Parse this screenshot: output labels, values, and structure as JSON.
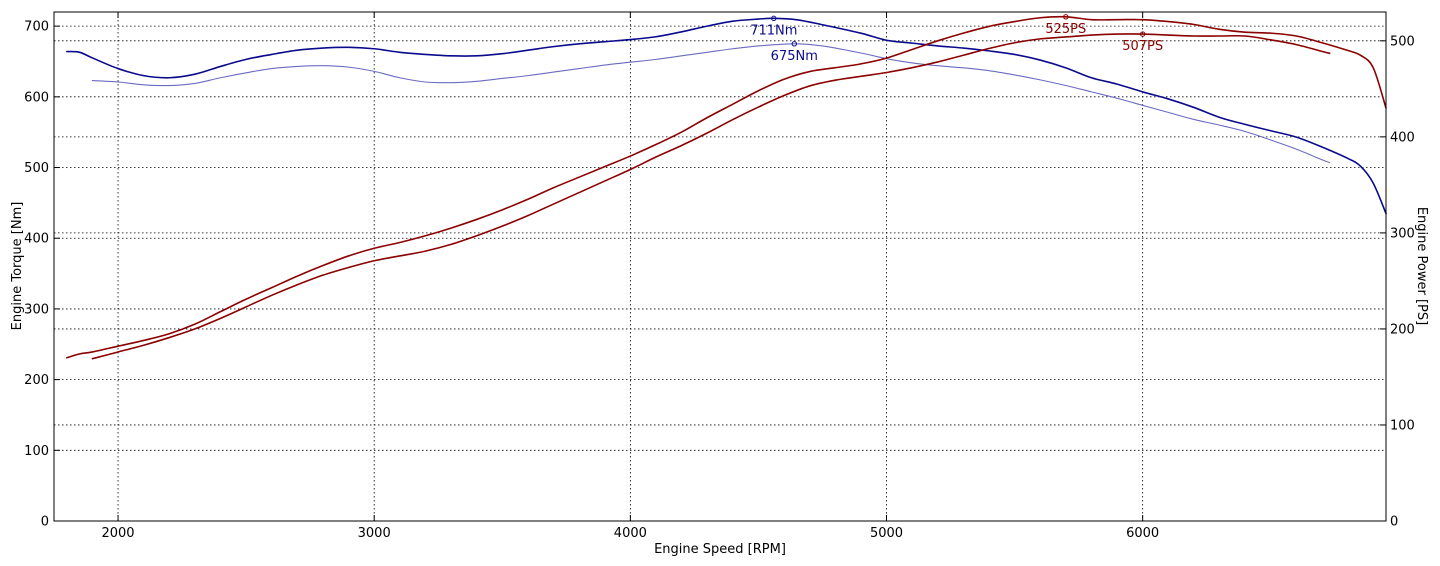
{
  "chart_data": {
    "type": "line",
    "title": "",
    "xlabel": "Engine Speed [RPM]",
    "ylabel": "Engine Torque [Nm]",
    "y2label": "Engine Power [PS]",
    "xlim": [
      1750,
      6950
    ],
    "ylim": [
      0,
      720
    ],
    "y2lim": [
      0,
      530
    ],
    "xticks": [
      2000,
      3000,
      4000,
      5000,
      6000
    ],
    "yticks": [
      0,
      100,
      200,
      300,
      400,
      500,
      600,
      700
    ],
    "y2ticks": [
      0,
      100,
      200,
      300,
      400,
      500
    ],
    "grid": true,
    "colors": {
      "torque": "#0a0a8c",
      "torque_light": "#6b6bc2",
      "power": "#8b0000"
    },
    "series": [
      {
        "key": "torque_a",
        "axis": "left",
        "color": "torque",
        "x": [
          1800,
          1850,
          1900,
          2000,
          2100,
          2200,
          2300,
          2400,
          2500,
          2600,
          2700,
          2800,
          2900,
          3000,
          3100,
          3200,
          3300,
          3400,
          3500,
          3600,
          3700,
          3800,
          3900,
          4000,
          4100,
          4200,
          4300,
          4400,
          4500,
          4560,
          4650,
          4750,
          4900,
          5000,
          5100,
          5200,
          5300,
          5400,
          5500,
          5600,
          5700,
          5800,
          5900,
          6000,
          6100,
          6200,
          6300,
          6400,
          6500,
          6600,
          6700,
          6800,
          6850,
          6900,
          6950
        ],
        "y": [
          664,
          663,
          655,
          640,
          630,
          627,
          632,
          643,
          653,
          660,
          666,
          669,
          670,
          668,
          663,
          660,
          658,
          658,
          661,
          666,
          671,
          675,
          678,
          681,
          685,
          692,
          700,
          707,
          710,
          711,
          709,
          702,
          690,
          680,
          676,
          672,
          669,
          665,
          660,
          652,
          641,
          627,
          618,
          607,
          597,
          585,
          571,
          561,
          552,
          543,
          529,
          513,
          502,
          478,
          435
        ]
      },
      {
        "key": "torque_b",
        "axis": "left",
        "color": "torque_light",
        "x": [
          1900,
          2000,
          2100,
          2200,
          2300,
          2400,
          2500,
          2600,
          2700,
          2800,
          2900,
          3000,
          3100,
          3200,
          3300,
          3400,
          3500,
          3600,
          3700,
          3800,
          3900,
          4000,
          4100,
          4200,
          4300,
          4400,
          4500,
          4640,
          4750,
          4900,
          5000,
          5100,
          5200,
          5300,
          5400,
          5500,
          5600,
          5700,
          5800,
          5900,
          6000,
          6100,
          6200,
          6300,
          6400,
          6500,
          6600,
          6700,
          6730
        ],
        "y": [
          623,
          621,
          617,
          616,
          619,
          627,
          634,
          640,
          643,
          644,
          642,
          636,
          627,
          621,
          620,
          622,
          626,
          630,
          635,
          640,
          645,
          649,
          653,
          658,
          663,
          668,
          672,
          675,
          672,
          662,
          654,
          648,
          644,
          641,
          637,
          631,
          624,
          616,
          607,
          598,
          588,
          578,
          568,
          560,
          551,
          539,
          526,
          511,
          507
        ]
      },
      {
        "key": "power_a",
        "axis": "right",
        "color": "power",
        "x": [
          1800,
          1850,
          1900,
          2000,
          2100,
          2200,
          2300,
          2400,
          2500,
          2600,
          2700,
          2800,
          2900,
          3000,
          3100,
          3200,
          3300,
          3400,
          3500,
          3600,
          3700,
          3800,
          3900,
          4000,
          4100,
          4200,
          4300,
          4400,
          4500,
          4600,
          4700,
          4800,
          4900,
          5000,
          5100,
          5200,
          5300,
          5400,
          5500,
          5600,
          5700,
          5800,
          5900,
          6000,
          6100,
          6200,
          6300,
          6400,
          6500,
          6600,
          6700,
          6800,
          6850,
          6900,
          6950
        ],
        "y": [
          170,
          174,
          176,
          182,
          188,
          195,
          205,
          218,
          231,
          243,
          255,
          266,
          276,
          284,
          290,
          297,
          305,
          314,
          324,
          335,
          347,
          358,
          369,
          380,
          392,
          405,
          420,
          434,
          448,
          460,
          468,
          472,
          476,
          482,
          491,
          500,
          508,
          515,
          520,
          524,
          525,
          522,
          522,
          522,
          520,
          517,
          512,
          509,
          508,
          505,
          498,
          490,
          485,
          472,
          430
        ]
      },
      {
        "key": "power_b",
        "axis": "right",
        "color": "power",
        "x": [
          1900,
          2000,
          2100,
          2200,
          2300,
          2400,
          2500,
          2600,
          2700,
          2800,
          2900,
          3000,
          3100,
          3200,
          3300,
          3400,
          3500,
          3600,
          3700,
          3800,
          3900,
          4000,
          4100,
          4200,
          4300,
          4400,
          4500,
          4600,
          4700,
          4800,
          4900,
          5000,
          5100,
          5200,
          5300,
          5400,
          5500,
          5600,
          5700,
          5800,
          5900,
          6000,
          6100,
          6200,
          6300,
          6400,
          6500,
          6600,
          6700,
          6730
        ],
        "y": [
          169,
          176,
          183,
          191,
          200,
          211,
          223,
          235,
          246,
          256,
          264,
          271,
          276,
          281,
          288,
          297,
          307,
          318,
          330,
          342,
          354,
          366,
          379,
          391,
          404,
          418,
          431,
          443,
          453,
          459,
          463,
          467,
          472,
          478,
          485,
          492,
          498,
          502,
          504,
          506,
          507,
          507,
          506,
          505,
          505,
          505,
          501,
          496,
          489,
          487
        ]
      }
    ],
    "peaks": [
      {
        "label": "711Nm",
        "x": 4560,
        "y": 711,
        "axis": "left",
        "color": "torque"
      },
      {
        "label": "675Nm",
        "x": 4640,
        "y": 675,
        "axis": "left",
        "color": "torque"
      },
      {
        "label": "525PS",
        "x": 5700,
        "y": 525,
        "axis": "right",
        "color": "power"
      },
      {
        "label": "507PS",
        "x": 6000,
        "y": 507,
        "axis": "right",
        "color": "power"
      }
    ]
  }
}
